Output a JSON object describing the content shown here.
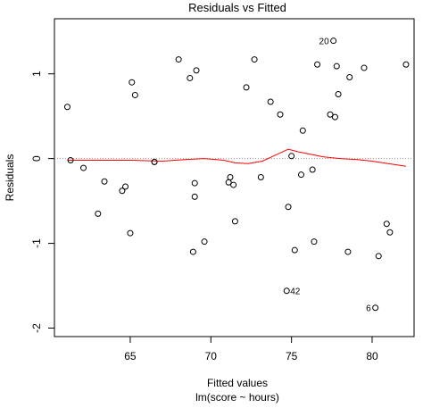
{
  "chart_data": {
    "type": "scatter",
    "title": "Residuals vs Fitted",
    "xlabel": "Fitted values",
    "subtitle": "lm(score ~ hours)",
    "ylabel": "Residuals",
    "xlim": [
      60.3,
      82.6
    ],
    "ylim": [
      -2.1,
      1.65
    ],
    "x_ticks": [
      65,
      70,
      75,
      80
    ],
    "y_ticks": [
      -2,
      -1,
      0,
      1
    ],
    "reference_line": {
      "y": 0,
      "style": "dotted",
      "color": "#999999"
    },
    "smooth_color": "#ff0000",
    "points": [
      {
        "x": 61.1,
        "y": 0.61
      },
      {
        "x": 61.3,
        "y": -0.02
      },
      {
        "x": 62.1,
        "y": -0.11
      },
      {
        "x": 63.0,
        "y": -0.65
      },
      {
        "x": 63.4,
        "y": -0.27
      },
      {
        "x": 64.5,
        "y": -0.38
      },
      {
        "x": 64.7,
        "y": -0.33
      },
      {
        "x": 65.0,
        "y": -0.88
      },
      {
        "x": 65.1,
        "y": 0.9
      },
      {
        "x": 65.3,
        "y": 0.75
      },
      {
        "x": 66.5,
        "y": -0.04
      },
      {
        "x": 66.5,
        "y": -0.04
      },
      {
        "x": 68.0,
        "y": 1.17
      },
      {
        "x": 68.7,
        "y": 0.95
      },
      {
        "x": 68.9,
        "y": -1.1
      },
      {
        "x": 69.0,
        "y": -0.29
      },
      {
        "x": 69.0,
        "y": -0.45
      },
      {
        "x": 69.1,
        "y": 1.04
      },
      {
        "x": 69.6,
        "y": -0.98
      },
      {
        "x": 71.1,
        "y": -0.28
      },
      {
        "x": 71.2,
        "y": -0.22
      },
      {
        "x": 71.4,
        "y": -0.31
      },
      {
        "x": 71.5,
        "y": -0.74
      },
      {
        "x": 72.2,
        "y": 0.84
      },
      {
        "x": 72.7,
        "y": 1.17
      },
      {
        "x": 73.1,
        "y": -0.22
      },
      {
        "x": 73.7,
        "y": 0.67
      },
      {
        "x": 74.3,
        "y": 0.52
      },
      {
        "x": 74.7,
        "y": -1.56,
        "label": "42"
      },
      {
        "x": 74.8,
        "y": -0.57
      },
      {
        "x": 75.0,
        "y": 0.03
      },
      {
        "x": 75.2,
        "y": -1.08
      },
      {
        "x": 75.6,
        "y": -0.19
      },
      {
        "x": 75.7,
        "y": 0.33
      },
      {
        "x": 76.3,
        "y": -0.13
      },
      {
        "x": 76.4,
        "y": -0.98
      },
      {
        "x": 76.6,
        "y": 1.11
      },
      {
        "x": 77.4,
        "y": 0.52
      },
      {
        "x": 77.6,
        "y": 1.39,
        "label": "20"
      },
      {
        "x": 77.7,
        "y": 0.49
      },
      {
        "x": 77.8,
        "y": 1.09
      },
      {
        "x": 77.9,
        "y": 0.76
      },
      {
        "x": 78.5,
        "y": -1.1
      },
      {
        "x": 78.6,
        "y": 0.96
      },
      {
        "x": 79.5,
        "y": 1.07
      },
      {
        "x": 80.2,
        "y": -1.76,
        "label": "6"
      },
      {
        "x": 80.4,
        "y": -1.15
      },
      {
        "x": 80.9,
        "y": -0.77
      },
      {
        "x": 81.1,
        "y": -0.87
      },
      {
        "x": 82.1,
        "y": 1.11
      }
    ],
    "smooth": {
      "x": [
        61.1,
        63.0,
        65.0,
        67.0,
        68.5,
        69.6,
        70.8,
        71.5,
        72.3,
        73.2,
        74.0,
        74.8,
        75.4,
        76.2,
        77.0,
        78.0,
        79.0,
        80.0,
        81.0,
        82.1
      ],
      "y": [
        -0.02,
        -0.02,
        -0.02,
        -0.03,
        -0.01,
        0.0,
        -0.02,
        -0.05,
        -0.06,
        -0.03,
        0.04,
        0.11,
        0.08,
        0.05,
        0.02,
        0.0,
        -0.01,
        -0.03,
        -0.06,
        -0.09
      ]
    }
  }
}
